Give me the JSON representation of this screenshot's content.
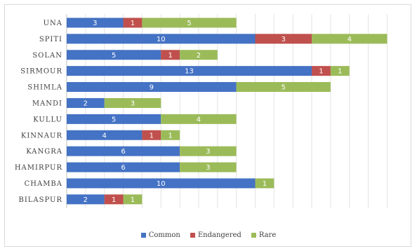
{
  "chart_data": {
    "type": "bar",
    "orientation": "horizontal",
    "stacked": true,
    "categories": [
      "UNA",
      "SPITI",
      "SOLAN",
      "SIRMOUR",
      "SHIMLA",
      "MANDI",
      "KULLU",
      "KINNAUR",
      "KANGRA",
      "HAMIRPUR",
      "CHAMBA",
      "BILASPUR"
    ],
    "series": [
      {
        "name": "Common",
        "color": "#4472c4",
        "values": [
          3,
          10,
          5,
          13,
          9,
          2,
          5,
          4,
          6,
          6,
          10,
          2
        ]
      },
      {
        "name": "Endangered",
        "color": "#c0504d",
        "values": [
          1,
          3,
          1,
          1,
          0,
          0,
          0,
          1,
          0,
          0,
          0,
          1
        ]
      },
      {
        "name": "Rare",
        "color": "#9bbb59",
        "values": [
          5,
          4,
          2,
          1,
          5,
          3,
          4,
          1,
          3,
          3,
          1,
          1
        ]
      }
    ],
    "xlim": [
      0,
      17
    ],
    "gridlines": true,
    "legend": "bottom",
    "data_labels": true
  }
}
